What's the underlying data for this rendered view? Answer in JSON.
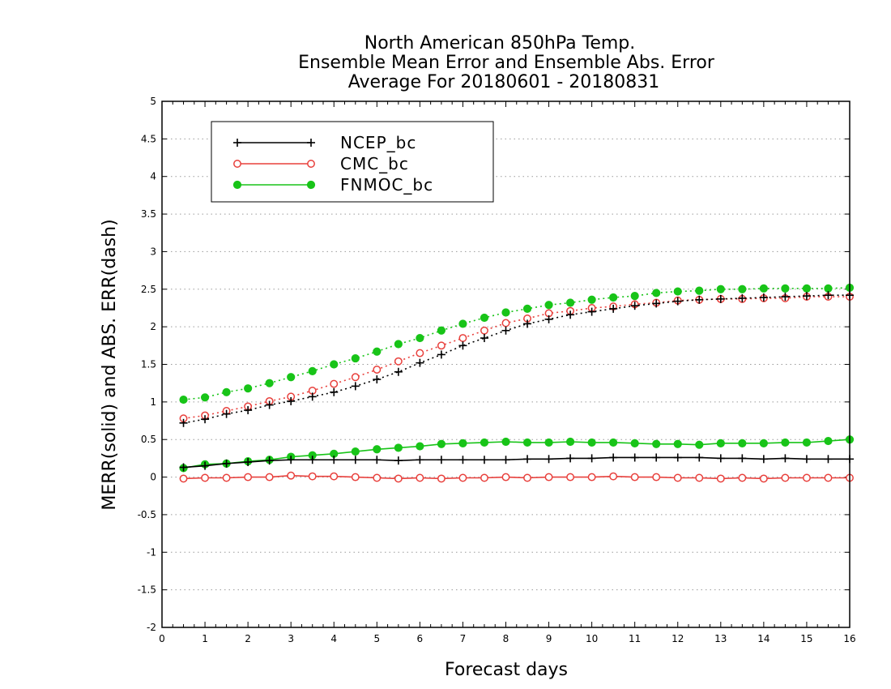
{
  "chart_data": {
    "type": "line",
    "title": [
      "North American 850hPa Temp.",
      "Ensemble Mean Error and Ensemble Abs. Error",
      "Average For 20180601 - 20180831"
    ],
    "xlabel": "Forecast days",
    "ylabel": "MERR(solid) and ABS. ERR(dash)",
    "xlim": [
      0,
      16
    ],
    "ylim": [
      -2,
      5
    ],
    "x_ticks": [
      0,
      1,
      2,
      3,
      4,
      5,
      6,
      7,
      8,
      9,
      10,
      11,
      12,
      13,
      14,
      15,
      16
    ],
    "x_tick_labels": [
      "0",
      "1",
      "2",
      "3",
      "4",
      "5",
      "6",
      "7",
      "8",
      "9",
      "10",
      "11",
      "12",
      "13",
      "14",
      "15",
      "16"
    ],
    "y_ticks": [
      -2,
      -1.5,
      -1,
      -0.5,
      0,
      0.5,
      1,
      1.5,
      2,
      2.5,
      3,
      3.5,
      4,
      4.5,
      5
    ],
    "y_tick_labels": [
      "-2",
      "-1.5",
      "-1",
      "-0.5",
      "0",
      "0.5",
      "1",
      "1.5",
      "2",
      "2.5",
      "3",
      "3.5",
      "4",
      "4.5",
      "5"
    ],
    "grid": "horizontal dotted",
    "legend_position": "top-left",
    "x": [
      0.5,
      1,
      1.5,
      2,
      2.5,
      3,
      3.5,
      4,
      4.5,
      5,
      5.5,
      6,
      6.5,
      7,
      7.5,
      8,
      8.5,
      9,
      9.5,
      10,
      10.5,
      11,
      11.5,
      12,
      12.5,
      13,
      13.5,
      14,
      14.5,
      15,
      15.5,
      16
    ],
    "series": [
      {
        "name": "NCEP_bc",
        "color": "#000000",
        "marker": "plus",
        "merr": [
          0.13,
          0.15,
          0.18,
          0.2,
          0.22,
          0.23,
          0.23,
          0.23,
          0.23,
          0.23,
          0.22,
          0.23,
          0.23,
          0.23,
          0.23,
          0.23,
          0.24,
          0.24,
          0.25,
          0.25,
          0.26,
          0.26,
          0.26,
          0.26,
          0.26,
          0.25,
          0.25,
          0.24,
          0.25,
          0.24,
          0.24,
          0.24
        ],
        "abs_err": [
          0.72,
          0.77,
          0.84,
          0.89,
          0.96,
          1.01,
          1.07,
          1.13,
          1.21,
          1.3,
          1.4,
          1.52,
          1.63,
          1.75,
          1.85,
          1.95,
          2.04,
          2.1,
          2.16,
          2.2,
          2.24,
          2.28,
          2.31,
          2.34,
          2.36,
          2.37,
          2.38,
          2.39,
          2.4,
          2.41,
          2.42,
          2.42
        ]
      },
      {
        "name": "CMC_bc",
        "color": "#e8403c",
        "marker": "open-circle",
        "merr": [
          -0.02,
          -0.01,
          -0.01,
          0.0,
          0.0,
          0.02,
          0.01,
          0.01,
          0.0,
          -0.01,
          -0.02,
          -0.01,
          -0.02,
          -0.01,
          -0.01,
          0.0,
          -0.01,
          0.0,
          0.0,
          0.0,
          0.01,
          0.0,
          0.0,
          -0.01,
          -0.01,
          -0.02,
          -0.01,
          -0.02,
          -0.01,
          -0.01,
          -0.01,
          -0.01
        ],
        "abs_err": [
          0.78,
          0.82,
          0.88,
          0.94,
          1.01,
          1.07,
          1.15,
          1.24,
          1.33,
          1.43,
          1.54,
          1.65,
          1.75,
          1.85,
          1.95,
          2.05,
          2.11,
          2.18,
          2.21,
          2.25,
          2.27,
          2.3,
          2.32,
          2.35,
          2.36,
          2.37,
          2.37,
          2.38,
          2.38,
          2.4,
          2.4,
          2.4
        ]
      },
      {
        "name": "FNMOC_bc",
        "color": "#18c418",
        "marker": "filled-circle",
        "merr": [
          0.12,
          0.17,
          0.18,
          0.21,
          0.23,
          0.27,
          0.29,
          0.31,
          0.34,
          0.37,
          0.39,
          0.41,
          0.44,
          0.45,
          0.46,
          0.47,
          0.46,
          0.46,
          0.47,
          0.46,
          0.46,
          0.45,
          0.44,
          0.44,
          0.43,
          0.45,
          0.45,
          0.45,
          0.46,
          0.46,
          0.48,
          0.5
        ],
        "abs_err": [
          1.03,
          1.06,
          1.13,
          1.18,
          1.25,
          1.33,
          1.41,
          1.5,
          1.58,
          1.67,
          1.77,
          1.85,
          1.95,
          2.04,
          2.12,
          2.19,
          2.24,
          2.29,
          2.32,
          2.36,
          2.39,
          2.41,
          2.45,
          2.47,
          2.48,
          2.5,
          2.5,
          2.51,
          2.51,
          2.51,
          2.51,
          2.52
        ]
      }
    ]
  }
}
